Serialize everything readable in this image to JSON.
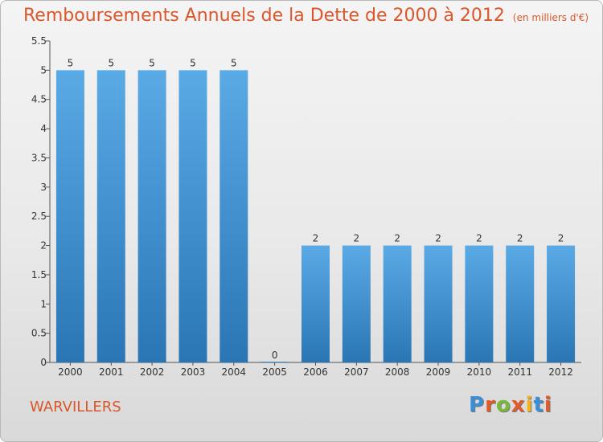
{
  "header": {
    "title": "Remboursements Annuels de la Dette de 2000 à 2012",
    "unit": "(en milliers d'€)"
  },
  "footer": {
    "location": "WARVILLERS",
    "brand": "Proxiti"
  },
  "colors": {
    "title": "#d9572b",
    "bar_top": "#5aaae6",
    "bar_bottom": "#2a76b4",
    "brand_letters": [
      "#3b8fd6",
      "#e05a2b",
      "#7ab83a",
      "#e05a2b",
      "#f2b21f",
      "#3b8fd6",
      "#e05a2b"
    ]
  },
  "chart_data": {
    "type": "bar",
    "categories": [
      "2000",
      "2001",
      "2002",
      "2003",
      "2004",
      "2005",
      "2006",
      "2007",
      "2008",
      "2009",
      "2010",
      "2011",
      "2012"
    ],
    "values": [
      5,
      5,
      5,
      5,
      5,
      0,
      2,
      2,
      2,
      2,
      2,
      2,
      2
    ],
    "data_labels": [
      "5",
      "5",
      "5",
      "5",
      "5",
      "0",
      "2",
      "2",
      "2",
      "2",
      "2",
      "2",
      "2"
    ],
    "yticks": [
      "0",
      "0.5",
      "1",
      "1.5",
      "2",
      "2.5",
      "3",
      "3.5",
      "4",
      "4.5",
      "5",
      "5.5"
    ],
    "ylim": [
      0,
      5.5
    ],
    "grid": false
  }
}
